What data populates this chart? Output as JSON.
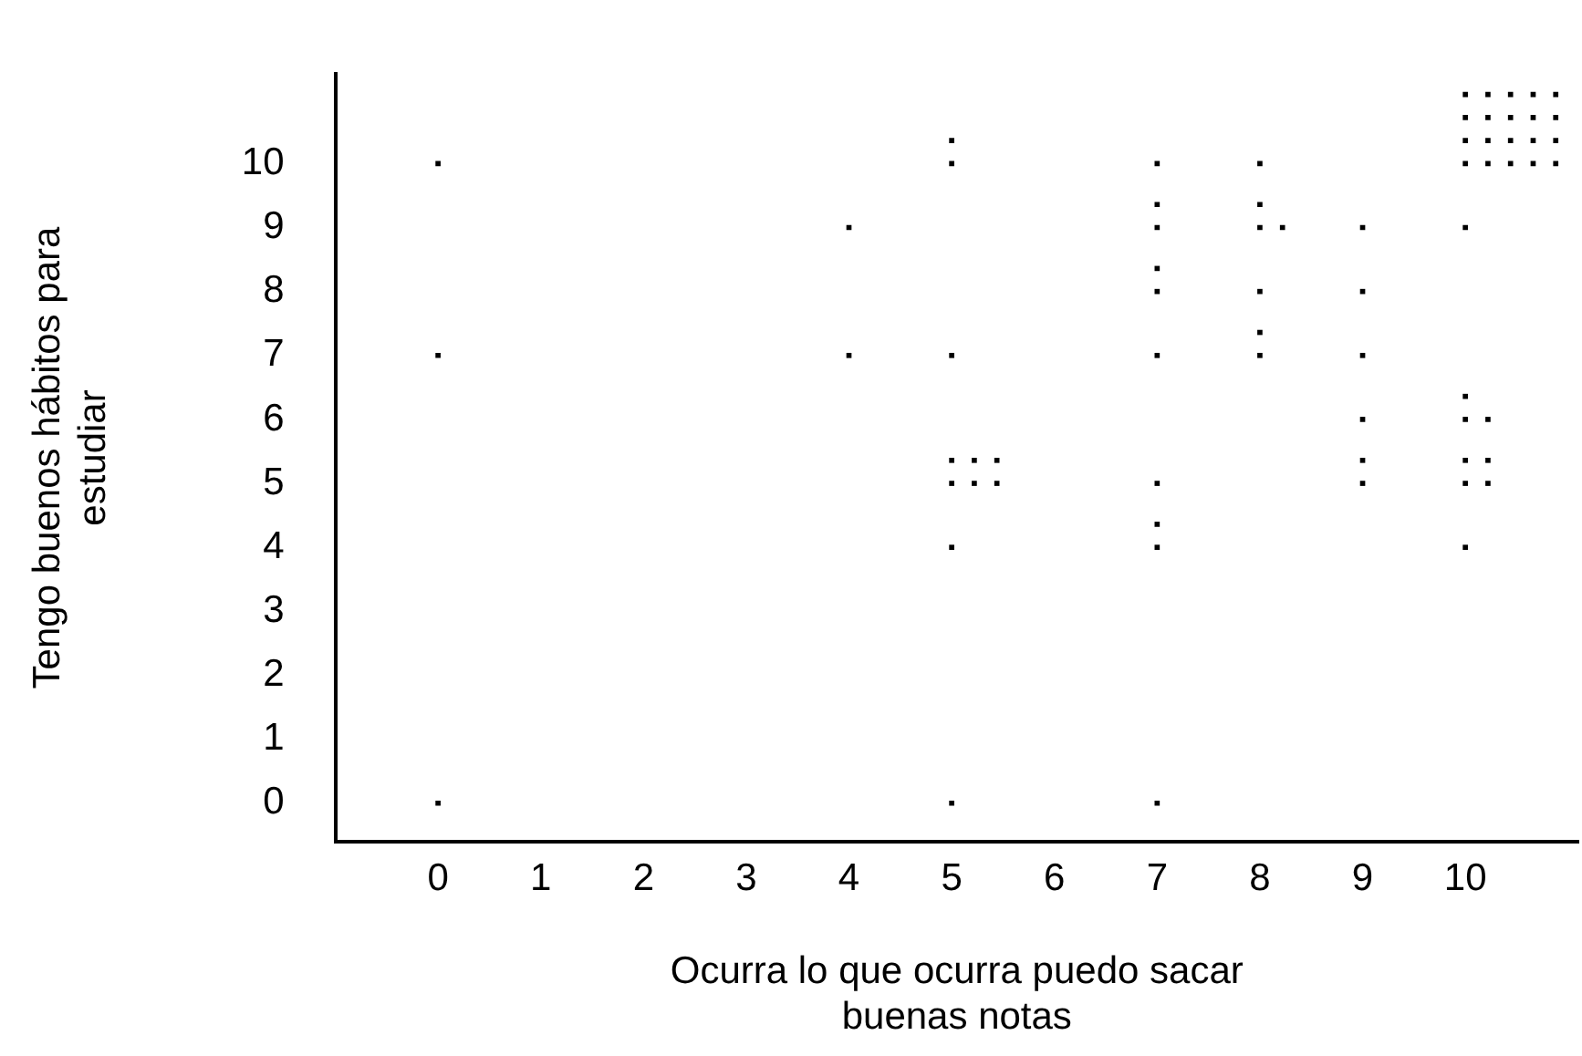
{
  "chart_data": {
    "type": "scatter",
    "xlabel": "Ocurra lo que ocurra puedo sacar buenas notas",
    "ylabel": "Tengo buenos hábitos para estudiar",
    "xlim": [
      -1,
      11.1
    ],
    "ylim": [
      -0.6,
      11.4
    ],
    "xticks": [
      0,
      1,
      2,
      3,
      4,
      5,
      6,
      7,
      8,
      9,
      10
    ],
    "yticks": [
      0,
      1,
      2,
      3,
      4,
      5,
      6,
      7,
      8,
      9,
      10
    ],
    "grid": false,
    "legend": false,
    "marker": "square",
    "series": [
      {
        "color": "#000000",
        "x": [
          0,
          5,
          5,
          7,
          8,
          10,
          10.22,
          10.44,
          10.66,
          10.88,
          10,
          10.22,
          10.44,
          10.66,
          10.88,
          10,
          10.22,
          10.44,
          10.66,
          10.88,
          10,
          10.22,
          10.44,
          10.66,
          10.88,
          4,
          7,
          7,
          8,
          8,
          8.22,
          9,
          10,
          7,
          7,
          8,
          9,
          0,
          4,
          5,
          7,
          8,
          8,
          9,
          9,
          10,
          10.22,
          10,
          5,
          5.22,
          5.44,
          5,
          5.22,
          5.44,
          7,
          9,
          9,
          10,
          10.22,
          10,
          10.22,
          5,
          7,
          7,
          10,
          0,
          5,
          7
        ],
        "values": [
          10,
          10,
          10.36,
          10,
          10,
          10,
          10,
          10,
          10,
          10,
          10.36,
          10.36,
          10.36,
          10.36,
          10.36,
          10.72,
          10.72,
          10.72,
          10.72,
          10.72,
          11.08,
          11.08,
          11.08,
          11.08,
          11.08,
          9,
          9,
          9.36,
          9,
          9.36,
          9,
          9,
          9,
          8,
          8.36,
          8,
          8,
          7,
          7,
          7,
          7,
          7,
          7.36,
          7,
          6,
          6,
          6,
          6.36,
          5,
          5,
          5,
          5.36,
          5.36,
          5.36,
          5,
          5,
          5.36,
          5,
          5,
          5.36,
          5.36,
          4,
          4,
          4.36,
          4,
          0,
          0,
          0
        ]
      }
    ]
  }
}
